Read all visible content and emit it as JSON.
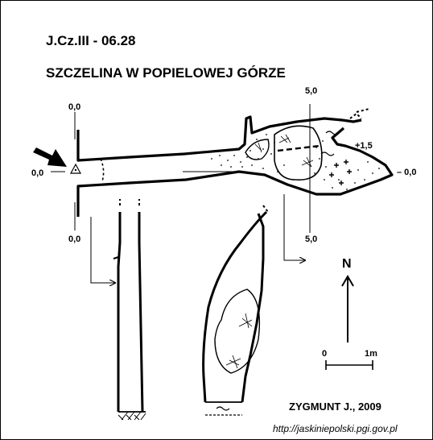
{
  "header": {
    "cave_code": "J.Cz.III - 06.28",
    "cave_name": "SZCZELINA W POPIELOWEJ GÓRZE"
  },
  "plan": {
    "entrance_top_label": "0,0",
    "entrance_left_label": "0,0",
    "entrance_bottom_label": "0,0",
    "section_top_label": "5,0",
    "section_bottom_label": "5,0",
    "height_label": "+1,5",
    "end_label": "– 0,0"
  },
  "north": {
    "label": "N"
  },
  "scale": {
    "start_label": "0",
    "end_label": "1m"
  },
  "footer": {
    "author": "ZYGMUNT J., 2009",
    "source_url": "http://jaskiniepolski.pgi.gov.pl"
  },
  "colors": {
    "ink": "#000000",
    "paper": "#ffffff"
  }
}
